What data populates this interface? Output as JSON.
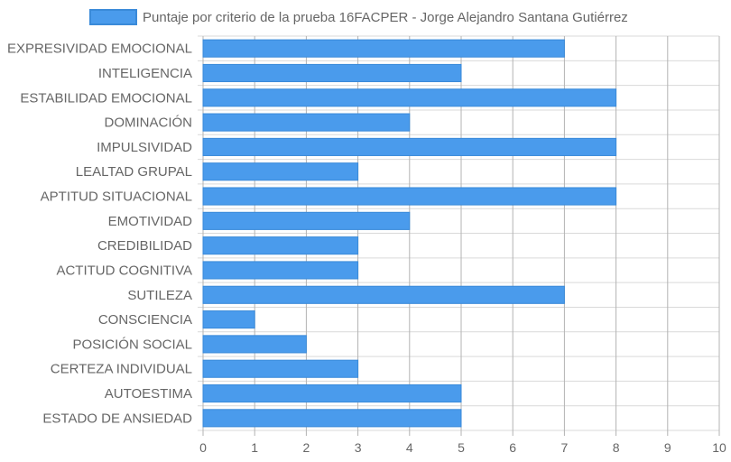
{
  "chart_data": {
    "type": "bar",
    "orientation": "horizontal",
    "title": "",
    "xlabel": "",
    "ylabel": "",
    "xlim": [
      0,
      10
    ],
    "x_ticks": [
      "0",
      "1",
      "2",
      "3",
      "4",
      "5",
      "6",
      "7",
      "8",
      "9",
      "10"
    ],
    "grid": true,
    "legend_position": "top",
    "categories": [
      "EXPRESIVIDAD EMOCIONAL",
      "INTELIGENCIA",
      "ESTABILIDAD EMOCIONAL",
      "DOMINACIÓN",
      "IMPULSIVIDAD",
      "LEALTAD GRUPAL",
      "APTITUD SITUACIONAL",
      "EMOTIVIDAD",
      "CREDIBILIDAD",
      "ACTITUD COGNITIVA",
      "SUTILEZA",
      "CONSCIENCIA",
      "POSICIÓN SOCIAL",
      "CERTEZA INDIVIDUAL",
      "AUTOESTIMA",
      "ESTADO DE ANSIEDAD"
    ],
    "series": [
      {
        "name": "Puntaje por criterio de la prueba 16FACPER - Jorge Alejandro Santana Gutiérrez",
        "values": [
          7,
          5,
          8,
          4,
          8,
          3,
          8,
          4,
          3,
          3,
          7,
          1,
          2,
          3,
          5,
          5
        ],
        "color": "#4a9bec",
        "border_color": "#3a8ad9"
      }
    ],
    "grid_color": "#d9d9d9",
    "grid_line_color_strong": "#b3b3b3"
  }
}
